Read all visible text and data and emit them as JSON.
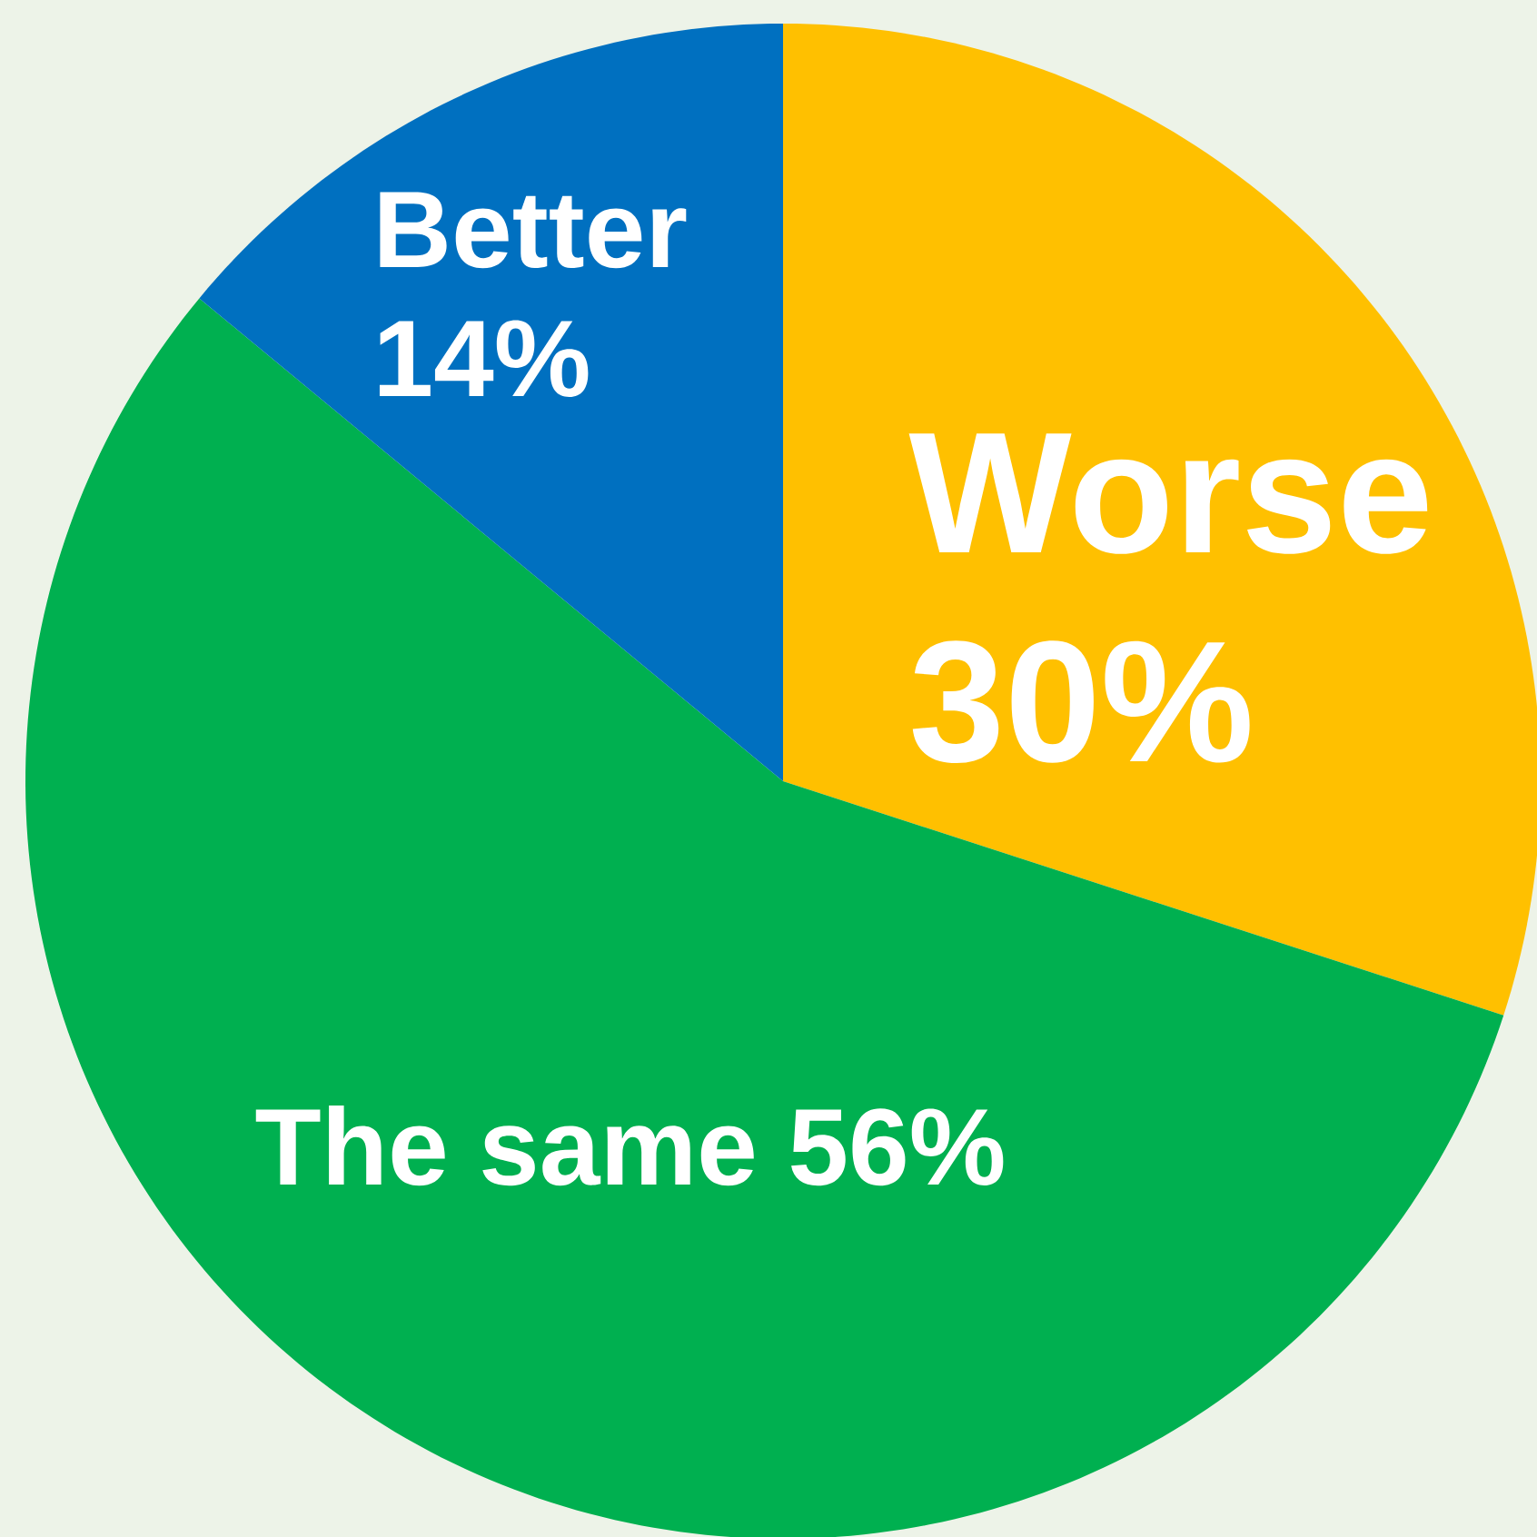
{
  "chart_data": {
    "type": "pie",
    "categories": [
      "Worse",
      "The same",
      "Better"
    ],
    "values": [
      30,
      56,
      14
    ],
    "value_labels": [
      "30%",
      "56%",
      "14%"
    ],
    "colors": [
      "#ffc000",
      "#00b050",
      "#0070c0"
    ]
  }
}
